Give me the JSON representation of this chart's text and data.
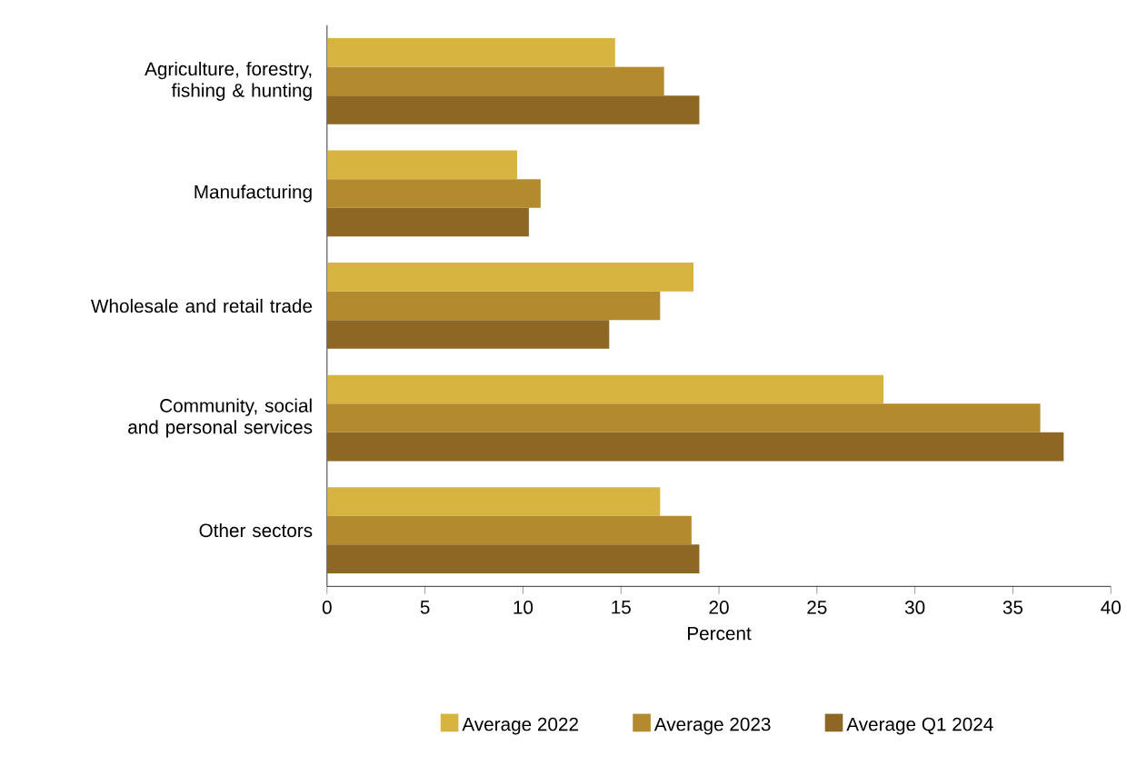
{
  "chart_data": {
    "type": "bar",
    "orientation": "horizontal",
    "categories": [
      "Agriculture, forestry, fishing & hunting",
      "Manufacturing",
      "Wholesale and retail trade",
      "Community, social and personal services",
      "Other sectors"
    ],
    "series": [
      {
        "name": "Average 2022",
        "color": "#d6b43f",
        "values": [
          14.7,
          9.7,
          18.7,
          28.4,
          17.0
        ]
      },
      {
        "name": "Average 2023",
        "color": "#b38b2e",
        "values": [
          17.2,
          10.9,
          17.0,
          36.4,
          18.6
        ]
      },
      {
        "name": "Average Q1 2024",
        "color": "#8f6725",
        "values": [
          19.0,
          10.3,
          14.4,
          37.6,
          19.0
        ]
      }
    ],
    "xlabel": "Percent",
    "xlim": [
      0,
      40
    ],
    "xticks": [
      0,
      5,
      10,
      15,
      20,
      25,
      30,
      35,
      40
    ],
    "legend": "bottom"
  }
}
